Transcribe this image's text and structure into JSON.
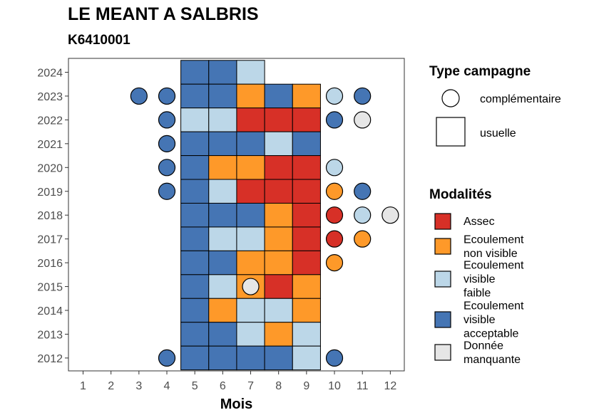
{
  "chart_data": {
    "type": "heatmap",
    "title": "LE MEANT A SALBRIS",
    "subtitle": "K6410001",
    "xlabel": "Mois",
    "x_ticks": [
      "1",
      "2",
      "3",
      "4",
      "5",
      "6",
      "7",
      "8",
      "9",
      "10",
      "11",
      "12"
    ],
    "y_ticks": [
      "2024",
      "2023",
      "2022",
      "2021",
      "2020",
      "2019",
      "2018",
      "2017",
      "2016",
      "2015",
      "2014",
      "2013",
      "2012"
    ],
    "legend_type": {
      "title": "Type campagne",
      "items": [
        {
          "label": "complémentaire",
          "shape": "circle"
        },
        {
          "label": "usuelle",
          "shape": "square"
        }
      ]
    },
    "legend_modalites": {
      "title": "Modalités",
      "items": [
        {
          "key": "assec",
          "lines": [
            "Assec"
          ],
          "color": "#d73027"
        },
        {
          "key": "nonvis",
          "lines": [
            "Ecoulement",
            "non visible"
          ],
          "color": "#fe9929"
        },
        {
          "key": "faible",
          "lines": [
            "Ecoulement",
            "visible",
            "faible"
          ],
          "color": "#bcd7e8"
        },
        {
          "key": "accept",
          "lines": [
            "Ecoulement",
            "visible",
            "acceptable"
          ],
          "color": "#4575b4"
        },
        {
          "key": "manq",
          "lines": [
            "Donnée",
            "manquante"
          ],
          "color": "#e6e6e6"
        }
      ]
    },
    "colors": {
      "assec": "#d73027",
      "nonvis": "#fe9929",
      "faible": "#bcd7e8",
      "accept": "#4575b4",
      "manq": "#e6e6e6"
    },
    "usuelle": [
      {
        "year": 2024,
        "values": {
          "5": "accept",
          "6": "accept",
          "7": "faible"
        }
      },
      {
        "year": 2023,
        "values": {
          "5": "accept",
          "6": "accept",
          "7": "nonvis",
          "8": "accept",
          "9": "nonvis"
        }
      },
      {
        "year": 2022,
        "values": {
          "5": "faible",
          "6": "faible",
          "7": "assec",
          "8": "assec",
          "9": "assec"
        }
      },
      {
        "year": 2021,
        "values": {
          "5": "accept",
          "6": "accept",
          "7": "accept",
          "8": "faible",
          "9": "accept"
        }
      },
      {
        "year": 2020,
        "values": {
          "5": "accept",
          "6": "nonvis",
          "7": "nonvis",
          "8": "assec",
          "9": "assec"
        }
      },
      {
        "year": 2019,
        "values": {
          "5": "accept",
          "6": "faible",
          "7": "assec",
          "8": "assec",
          "9": "assec"
        }
      },
      {
        "year": 2018,
        "values": {
          "5": "accept",
          "6": "accept",
          "7": "accept",
          "8": "nonvis",
          "9": "assec"
        }
      },
      {
        "year": 2017,
        "values": {
          "5": "accept",
          "6": "faible",
          "7": "faible",
          "8": "nonvis",
          "9": "assec"
        }
      },
      {
        "year": 2016,
        "values": {
          "5": "accept",
          "6": "accept",
          "7": "nonvis",
          "8": "nonvis",
          "9": "assec"
        }
      },
      {
        "year": 2015,
        "values": {
          "5": "accept",
          "6": "faible",
          "7": "nonvis",
          "8": "assec",
          "9": "nonvis"
        }
      },
      {
        "year": 2014,
        "values": {
          "5": "accept",
          "6": "nonvis",
          "7": "faible",
          "8": "faible",
          "9": "nonvis"
        }
      },
      {
        "year": 2013,
        "values": {
          "5": "accept",
          "6": "accept",
          "7": "faible",
          "8": "nonvis",
          "9": "faible"
        }
      },
      {
        "year": 2012,
        "values": {
          "5": "accept",
          "6": "accept",
          "7": "accept",
          "8": "accept",
          "9": "faible"
        }
      }
    ],
    "complementaire": [
      {
        "year": 2023,
        "month": 3,
        "value": "accept"
      },
      {
        "year": 2023,
        "month": 4,
        "value": "accept"
      },
      {
        "year": 2023,
        "month": 10,
        "value": "faible"
      },
      {
        "year": 2023,
        "month": 11,
        "value": "accept"
      },
      {
        "year": 2022,
        "month": 4,
        "value": "accept"
      },
      {
        "year": 2022,
        "month": 10,
        "value": "accept"
      },
      {
        "year": 2022,
        "month": 11,
        "value": "manq"
      },
      {
        "year": 2021,
        "month": 4,
        "value": "accept"
      },
      {
        "year": 2020,
        "month": 4,
        "value": "accept"
      },
      {
        "year": 2020,
        "month": 10,
        "value": "faible"
      },
      {
        "year": 2019,
        "month": 4,
        "value": "accept"
      },
      {
        "year": 2019,
        "month": 10,
        "value": "nonvis"
      },
      {
        "year": 2019,
        "month": 11,
        "value": "accept"
      },
      {
        "year": 2018,
        "month": 10,
        "value": "assec"
      },
      {
        "year": 2018,
        "month": 11,
        "value": "faible"
      },
      {
        "year": 2018,
        "month": 12,
        "value": "manq"
      },
      {
        "year": 2017,
        "month": 10,
        "value": "assec"
      },
      {
        "year": 2017,
        "month": 11,
        "value": "nonvis"
      },
      {
        "year": 2016,
        "month": 10,
        "value": "nonvis"
      },
      {
        "year": 2015,
        "month": 7,
        "value": "manq"
      },
      {
        "year": 2012,
        "month": 4,
        "value": "accept"
      },
      {
        "year": 2012,
        "month": 10,
        "value": "accept"
      }
    ]
  }
}
